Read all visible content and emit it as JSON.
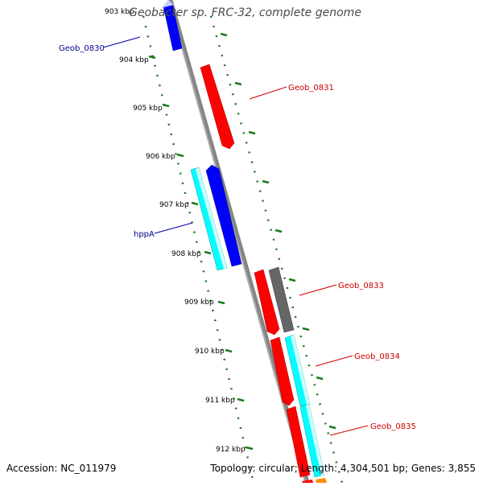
{
  "title": "Geobacter sp. FRC-32, complete genome",
  "footer": {
    "accession": "Accession: NC_011979",
    "summary": "Topology: circular; Length: 4,304,501 bp; Genes: 3,855"
  },
  "colors": {
    "forward_cds": "#ff0000",
    "reverse_cds": "#0000ff",
    "rna": "#00ffff",
    "other": "#666666",
    "scale_tick": "#1a7a1a",
    "backbone": "#888888"
  },
  "scale_labels": [
    "903 kbp",
    "904 kbp",
    "905 kbp",
    "906 kbp",
    "907 kbp",
    "908 kbp",
    "909 kbp",
    "910 kbp",
    "911 kbp",
    "912 kbp"
  ],
  "gene_labels": [
    {
      "text": "Geob_0830",
      "color": "#00008b"
    },
    {
      "text": "Geob_0831",
      "color": "#cc0000"
    },
    {
      "text": "hppA",
      "color": "#00008b"
    },
    {
      "text": "Geob_0833",
      "color": "#cc0000"
    },
    {
      "text": "Geob_0834",
      "color": "#cc0000"
    },
    {
      "text": "Geob_0835",
      "color": "#cc0000"
    }
  ]
}
